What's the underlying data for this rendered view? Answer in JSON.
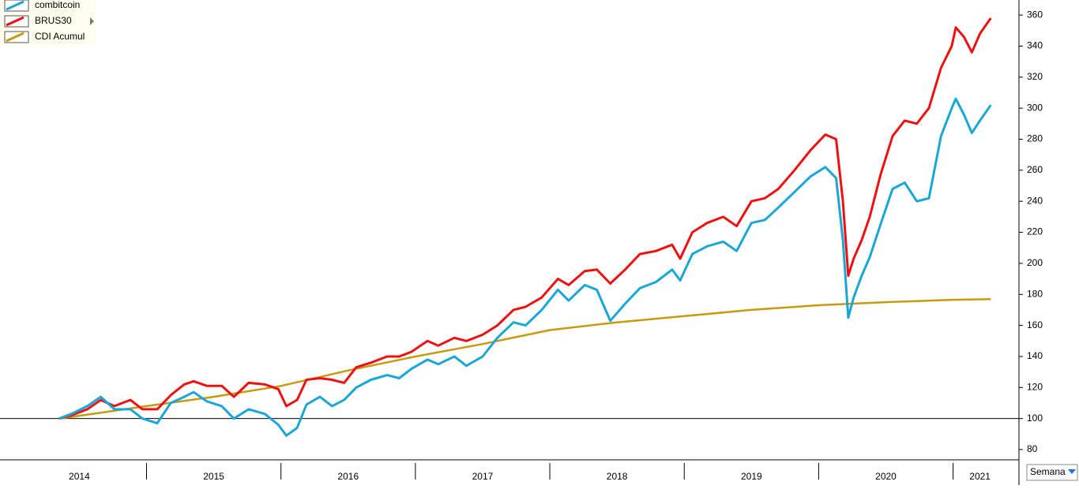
{
  "chart_data": {
    "type": "line",
    "x": [
      2014.35,
      2014.44,
      2014.56,
      2014.66,
      2014.76,
      2014.88,
      2014.97,
      2015.08,
      2015.18,
      2015.28,
      2015.35,
      2015.45,
      2015.56,
      2015.65,
      2015.76,
      2015.88,
      2015.98,
      2016.04,
      2016.12,
      2016.19,
      2016.29,
      2016.38,
      2016.47,
      2016.56,
      2016.67,
      2016.79,
      2016.88,
      2016.97,
      2017.09,
      2017.17,
      2017.29,
      2017.38,
      2017.5,
      2017.61,
      2017.73,
      2017.82,
      2017.94,
      2018.06,
      2018.14,
      2018.26,
      2018.35,
      2018.45,
      2018.56,
      2018.67,
      2018.79,
      2018.91,
      2018.97,
      2019.06,
      2019.17,
      2019.29,
      2019.39,
      2019.5,
      2019.6,
      2019.7,
      2019.82,
      2019.94,
      2020.05,
      2020.13,
      2020.18,
      2020.22,
      2020.26,
      2020.32,
      2020.38,
      2020.46,
      2020.55,
      2020.64,
      2020.73,
      2020.82,
      2020.91,
      2020.99,
      2021.02,
      2021.08,
      2021.14,
      2021.2,
      2021.28
    ],
    "series": [
      {
        "name": "combitcoin",
        "color": "#1aa7d6",
        "values": [
          100,
          103,
          108,
          114,
          106,
          106,
          100,
          97,
          110,
          114,
          117,
          111,
          108,
          100,
          106,
          103,
          96,
          89,
          94,
          109,
          114,
          108,
          112,
          120,
          125,
          128,
          126,
          132,
          138,
          135,
          140,
          134,
          140,
          152,
          162,
          160,
          170,
          183,
          176,
          186,
          183,
          163,
          174,
          184,
          188,
          196,
          189,
          206,
          211,
          214,
          208,
          226,
          228,
          236,
          246,
          256,
          262,
          255,
          215,
          165,
          178,
          192,
          204,
          225,
          248,
          252,
          240,
          242,
          282,
          300,
          306,
          296,
          284,
          292,
          302
        ]
      },
      {
        "name": "BRUS30",
        "color": "#ee1111",
        "values": [
          100,
          102,
          106,
          112,
          108,
          112,
          106,
          106,
          115,
          122,
          124,
          121,
          121,
          114,
          123,
          122,
          119,
          108,
          112,
          125,
          126,
          125,
          123,
          133,
          136,
          140,
          140,
          143,
          150,
          147,
          152,
          150,
          154,
          160,
          170,
          172,
          178,
          190,
          186,
          195,
          196,
          187,
          196,
          206,
          208,
          212,
          203,
          220,
          226,
          230,
          224,
          240,
          242,
          248,
          260,
          273,
          283,
          280,
          240,
          192,
          203,
          215,
          230,
          257,
          282,
          292,
          290,
          300,
          326,
          340,
          352,
          346,
          336,
          348,
          358
        ]
      },
      {
        "name": "CDI Acumul",
        "color": "#c89a10",
        "x": [
          2014.35,
          2014.6,
          2015,
          2015.5,
          2016,
          2016.5,
          2017,
          2017.5,
          2018,
          2018.5,
          2019,
          2019.5,
          2020,
          2020.5,
          2021,
          2021.28
        ],
        "values": [
          100,
          103,
          108,
          114,
          121,
          131,
          140,
          148,
          157,
          162,
          166,
          170,
          173,
          175,
          176.5,
          177
        ]
      }
    ],
    "xlim": [
      2013.91,
      2021.49
    ],
    "xticks": [
      {
        "value": 2014.5,
        "label": "2014"
      },
      {
        "value": 2015.5,
        "label": "2015"
      },
      {
        "value": 2016.5,
        "label": "2016"
      },
      {
        "value": 2017.5,
        "label": "2017"
      },
      {
        "value": 2018.5,
        "label": "2018"
      },
      {
        "value": 2019.5,
        "label": "2019"
      },
      {
        "value": 2020.5,
        "label": "2020"
      },
      {
        "value": 2021.2,
        "label": "2021"
      }
    ],
    "year_boundaries": [
      2015,
      2016,
      2017,
      2018,
      2019,
      2020,
      2021
    ],
    "ylim": [
      73.4,
      369.7
    ],
    "yticks": [
      80,
      100,
      120,
      140,
      160,
      180,
      200,
      220,
      240,
      260,
      280,
      300,
      320,
      340,
      360
    ],
    "reference_line": 100,
    "legend": "top-left",
    "period": "Semana"
  }
}
